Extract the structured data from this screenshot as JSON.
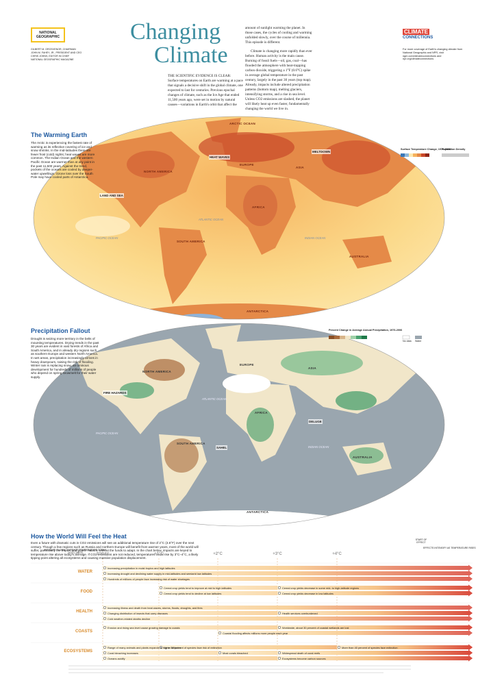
{
  "header": {
    "logo": "NATIONAL GEOGRAPHIC",
    "credits": [
      "GILBERT M. GROSVENOR, CHAIRMAN",
      "JOHN M. FAHEY, JR., PRESIDENT AND CEO",
      "CHRIS JOHNS, EDITOR IN CHIEF",
      "NATIONAL GEOGRAPHIC MAGAZINE"
    ],
    "title_line1": "Changing",
    "title_line2": "Climate",
    "intro_lead": "THE SCIENTIFIC EVIDENCE IS CLEAR:",
    "intro_col1": "Surface temperatures on Earth are warming at a pace that signals a decisive shift in the global climate, one expected to last for centuries. Previous epochal changes of climate, such as the Ice Age that ended 11,500 years ago, were set in motion by natural causes—variations in Earth's orbit that affect the",
    "intro_col2": "amount of sunlight warming the planet. In those cases, the cycles of cooling and warming unfolded slowly, over the course of millennia. This episode is different.",
    "intro_col3": "Climate is changing more rapidly than ever before. Human activity is the main cause. Burning of fossil fuels—oil, gas, coal—has flooded the atmosphere with heat-trapping carbon dioxide, triggering a 1°F (0.6°C) spike in average global temperature in the past century, largely in the past 30 years (top map). Already, impacts include altered precipitation patterns (bottom map), melting glaciers, intensifying storms, and a rise in sea level. Unless CO2 emissions are slashed, the planet will likely heat up even faster, fundamentally changing the world we live in.",
    "side_logo_line1": "CLIMATE",
    "side_logo_line2": "CONNECTIONS",
    "side_note": "For more coverage of Earth's changing climate from National Geographic and NPR, visit ngm.com/climateconnections and npr.org/climateconnections"
  },
  "warming_map": {
    "title": "The Warming Earth",
    "text": "The Arctic is experiencing the fastest rate of warming as its reflective covering of ice and snow shrinks. In the mid-latitudes there are fewer frost (cold) nights; heat waves are more common. The Indian Ocean and the western Pacific Ocean are warmer than at any point in the past 11,500 years. Against the trend, pockets of the oceans are cooled by deeper-water upwellings. Ozone loss over the South Pole may have cooled parts of Antarctica.",
    "legend_title": "Surface Temperature Change, 1976-2006",
    "legend2_title": "Population Density",
    "labels": {
      "arctic": "ARCTIC OCEAN",
      "north_america": "NORTH AMERICA",
      "europe": "EUROPE",
      "asia": "ASIA",
      "africa": "AFRICA",
      "south_america": "SOUTH AMERICA",
      "australia": "AUSTRALIA",
      "antarctica": "ANTARCTICA",
      "atlantic": "ATLANTIC OCEAN",
      "pacific": "PACIFIC OCEAN",
      "indian": "INDIAN OCEAN"
    },
    "callouts": {
      "heat_waves": "HEAT WAVES",
      "meltdown": "MELTDOWN",
      "land_and_sea": "LAND AND SEA"
    }
  },
  "precipitation_map": {
    "title": "Precipitation Fallout",
    "text": "Drought is seizing more territory in the belts of mounting temperatures. Drying trends in the past 30 years are evident in vast forests of Africa and South America, and in already dry regions such as southern Europe and western North America. In wet areas, precipitation increasingly arrives in heavy downpours, raising the risk of flooding. Winter rain is replacing snow, an ominous development for hundreds of millions of people who depend on spring snowmelt for their water supply.",
    "legend_title": "Percent Change in Average Annual Precipitation, 1976-2006",
    "no_data": "No data",
    "water": "Water",
    "labels": {
      "north_america": "NORTH AMERICA",
      "europe": "EUROPE",
      "asia": "ASIA",
      "africa": "AFRICA",
      "south_america": "SOUTH AMERICA",
      "australia": "AUSTRALIA",
      "antarctica": "ANTARCTICA",
      "atlantic": "ATLANTIC OCEAN",
      "pacific": "PACIFIC OCEAN",
      "indian": "INDIAN OCEAN"
    },
    "callouts": {
      "fire": "FIRE HAZARDS",
      "sahel": "SAHEL",
      "deluge": "DELUGE"
    }
  },
  "heat_chart": {
    "title": "How the World Will Feel the Heat",
    "text": "Even a future with dramatic cuts in CO2 emissions will see an additional temperature rise of 2°C (3.6°F) over the next century. Though a few regions such as Russia and northern Europe will benefit from warmer years, most of the world will suffer, particularly the tropics and poorer nations without the funds to adapt. In the chart below, impacts are keyed to temperature rise above today's average. If CO2 emissions are not reduced, temperatures could rise by 3°C–4°C, a likely tipping point altering all ecosystems and causing massive population displacement.",
    "axis_label": "AVERAGE GLOBAL SURFACE TEMPERATURE TODAY: 14.5°C (58°F)",
    "ticks": [
      "TODAY",
      "+1°C",
      "+2°C",
      "+3°C",
      "+4°C"
    ],
    "key_start": "START OF EFFECT",
    "key_note": "EFFECTS INTENSIFY AS TEMPERATURE RISES",
    "rows": [
      {
        "label": "WATER",
        "effects": [
          "Increasing precipitation in moist tropics and high latitudes",
          "Increasing drought and declining water supply in mid-latitudes and semiarid low latitudes",
          "Hundreds of millions of people face increasing risk of water shortages"
        ]
      },
      {
        "label": "FOOD",
        "effects": [
          "Cereal crop yields tend to improve at mid to high latitudes",
          "Cereal crop yields tend to decline at low latitudes",
          "Cereal crop yields decrease in some mid- to high-latitude regions",
          "Cereal crop yields decrease in low latitudes"
        ]
      },
      {
        "label": "HEALTH",
        "effects": [
          "Increasing illness and death from heat waves, storms, floods, droughts, and fires",
          "Changing distribution of insects that carry diseases",
          "Cold weather-related deaths decline",
          "Health services overburdened"
        ]
      },
      {
        "label": "COASTS",
        "effects": [
          "Erosion and rising sea level cause growing damage to coasts",
          "Coastal flooding affects millions more people each year",
          "Worldwide, about 30 percent of coastal wetlands are lost"
        ]
      },
      {
        "label": "ECOSYSTEMS",
        "effects": [
          "Range of many animals and plants expands to higher latitudes",
          "Up to 30 percent of species face risk of extinction",
          "More than 40 percent of species face extinction",
          "Coral bleaching increases",
          "Most corals bleached",
          "Widespread death of coral reefs",
          "Oceans acidify",
          "Ecosystems become carbon sources"
        ]
      }
    ]
  }
}
